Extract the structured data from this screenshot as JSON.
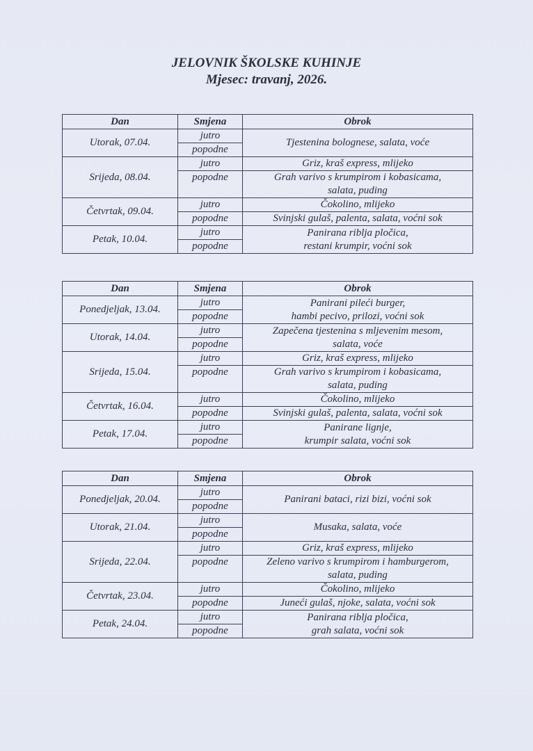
{
  "title": "JELOVNIK ŠKOLSKE KUHINJE",
  "subtitle": "Mjesec: travanj, 2026.",
  "headers": {
    "day": "Dan",
    "shift": "Smjena",
    "meal": "Obrok"
  },
  "weeks": [
    {
      "days": [
        {
          "day": "Utorak, 07.04.",
          "shifts": [
            "jutro",
            "popodne"
          ],
          "merged": true,
          "meals": [
            [
              "Tjestenina bolognese, salata, voće"
            ]
          ]
        },
        {
          "day": "Srijeda, 08.04.",
          "shifts": [
            "jutro",
            "popodne"
          ],
          "merged": false,
          "meals": [
            [
              "Griz, kraš express, mlijeko"
            ],
            [
              "Grah varivo s krumpirom i kobasicama,",
              "salata, puding"
            ]
          ]
        },
        {
          "day": "Četvrtak, 09.04.",
          "shifts": [
            "jutro",
            "popodne"
          ],
          "merged": false,
          "meals": [
            [
              "Čokolino, mlijeko"
            ],
            [
              "Svinjski gulaš, palenta, salata, voćni sok"
            ]
          ]
        },
        {
          "day": "Petak, 10.04.",
          "shifts": [
            "jutro",
            "popodne"
          ],
          "merged": true,
          "meals": [
            [
              "Panirana riblja pločica,",
              "restani krumpir, voćni sok"
            ]
          ]
        }
      ]
    },
    {
      "days": [
        {
          "day": "Ponedjeljak, 13.04.",
          "shifts": [
            "jutro",
            "popodne"
          ],
          "merged": true,
          "meals": [
            [
              "Panirani pileći burger,",
              "hambi pecivo, prilozi, voćni sok"
            ]
          ]
        },
        {
          "day": "Utorak, 14.04.",
          "shifts": [
            "jutro",
            "popodne"
          ],
          "merged": true,
          "meals": [
            [
              "Zapečena tjestenina s mljevenim mesom,",
              "salata, voće"
            ]
          ]
        },
        {
          "day": "Srijeda, 15.04.",
          "shifts": [
            "jutro",
            "popodne"
          ],
          "merged": false,
          "meals": [
            [
              "Griz, kraš express, mlijeko"
            ],
            [
              "Grah varivo s krumpirom i kobasicama,",
              "salata, puding"
            ]
          ]
        },
        {
          "day": "Četvrtak, 16.04.",
          "shifts": [
            "jutro",
            "popodne"
          ],
          "merged": false,
          "meals": [
            [
              "Čokolino, mlijeko"
            ],
            [
              "Svinjski gulaš, palenta, salata, voćni sok"
            ]
          ]
        },
        {
          "day": "Petak, 17.04.",
          "shifts": [
            "jutro",
            "popodne"
          ],
          "merged": true,
          "meals": [
            [
              "Panirane lignje,",
              "krumpir salata, voćni sok"
            ]
          ]
        }
      ]
    },
    {
      "days": [
        {
          "day": "Ponedjeljak, 20.04.",
          "shifts": [
            "jutro",
            "popodne"
          ],
          "merged": true,
          "meals": [
            [
              "Panirani bataci, rizi bizi, voćni sok"
            ]
          ]
        },
        {
          "day": "Utorak, 21.04.",
          "shifts": [
            "jutro",
            "popodne"
          ],
          "merged": true,
          "meals": [
            [
              "Musaka, salata, voće"
            ]
          ]
        },
        {
          "day": "Srijeda, 22.04.",
          "shifts": [
            "jutro",
            "popodne"
          ],
          "merged": false,
          "meals": [
            [
              "Griz, kraš express, mlijeko"
            ],
            [
              "Zeleno varivo s krumpirom i hamburgerom,",
              "salata, puding"
            ]
          ]
        },
        {
          "day": "Četvrtak, 23.04.",
          "shifts": [
            "jutro",
            "popodne"
          ],
          "merged": false,
          "meals": [
            [
              "Čokolino, mlijeko"
            ],
            [
              "Juneći gulaš, njoke, salata, voćni sok"
            ]
          ]
        },
        {
          "day": "Petak, 24.04.",
          "shifts": [
            "jutro",
            "popodne"
          ],
          "merged": true,
          "meals": [
            [
              "Panirana riblja pločica,",
              "grah salata, voćni sok"
            ]
          ]
        }
      ]
    }
  ]
}
